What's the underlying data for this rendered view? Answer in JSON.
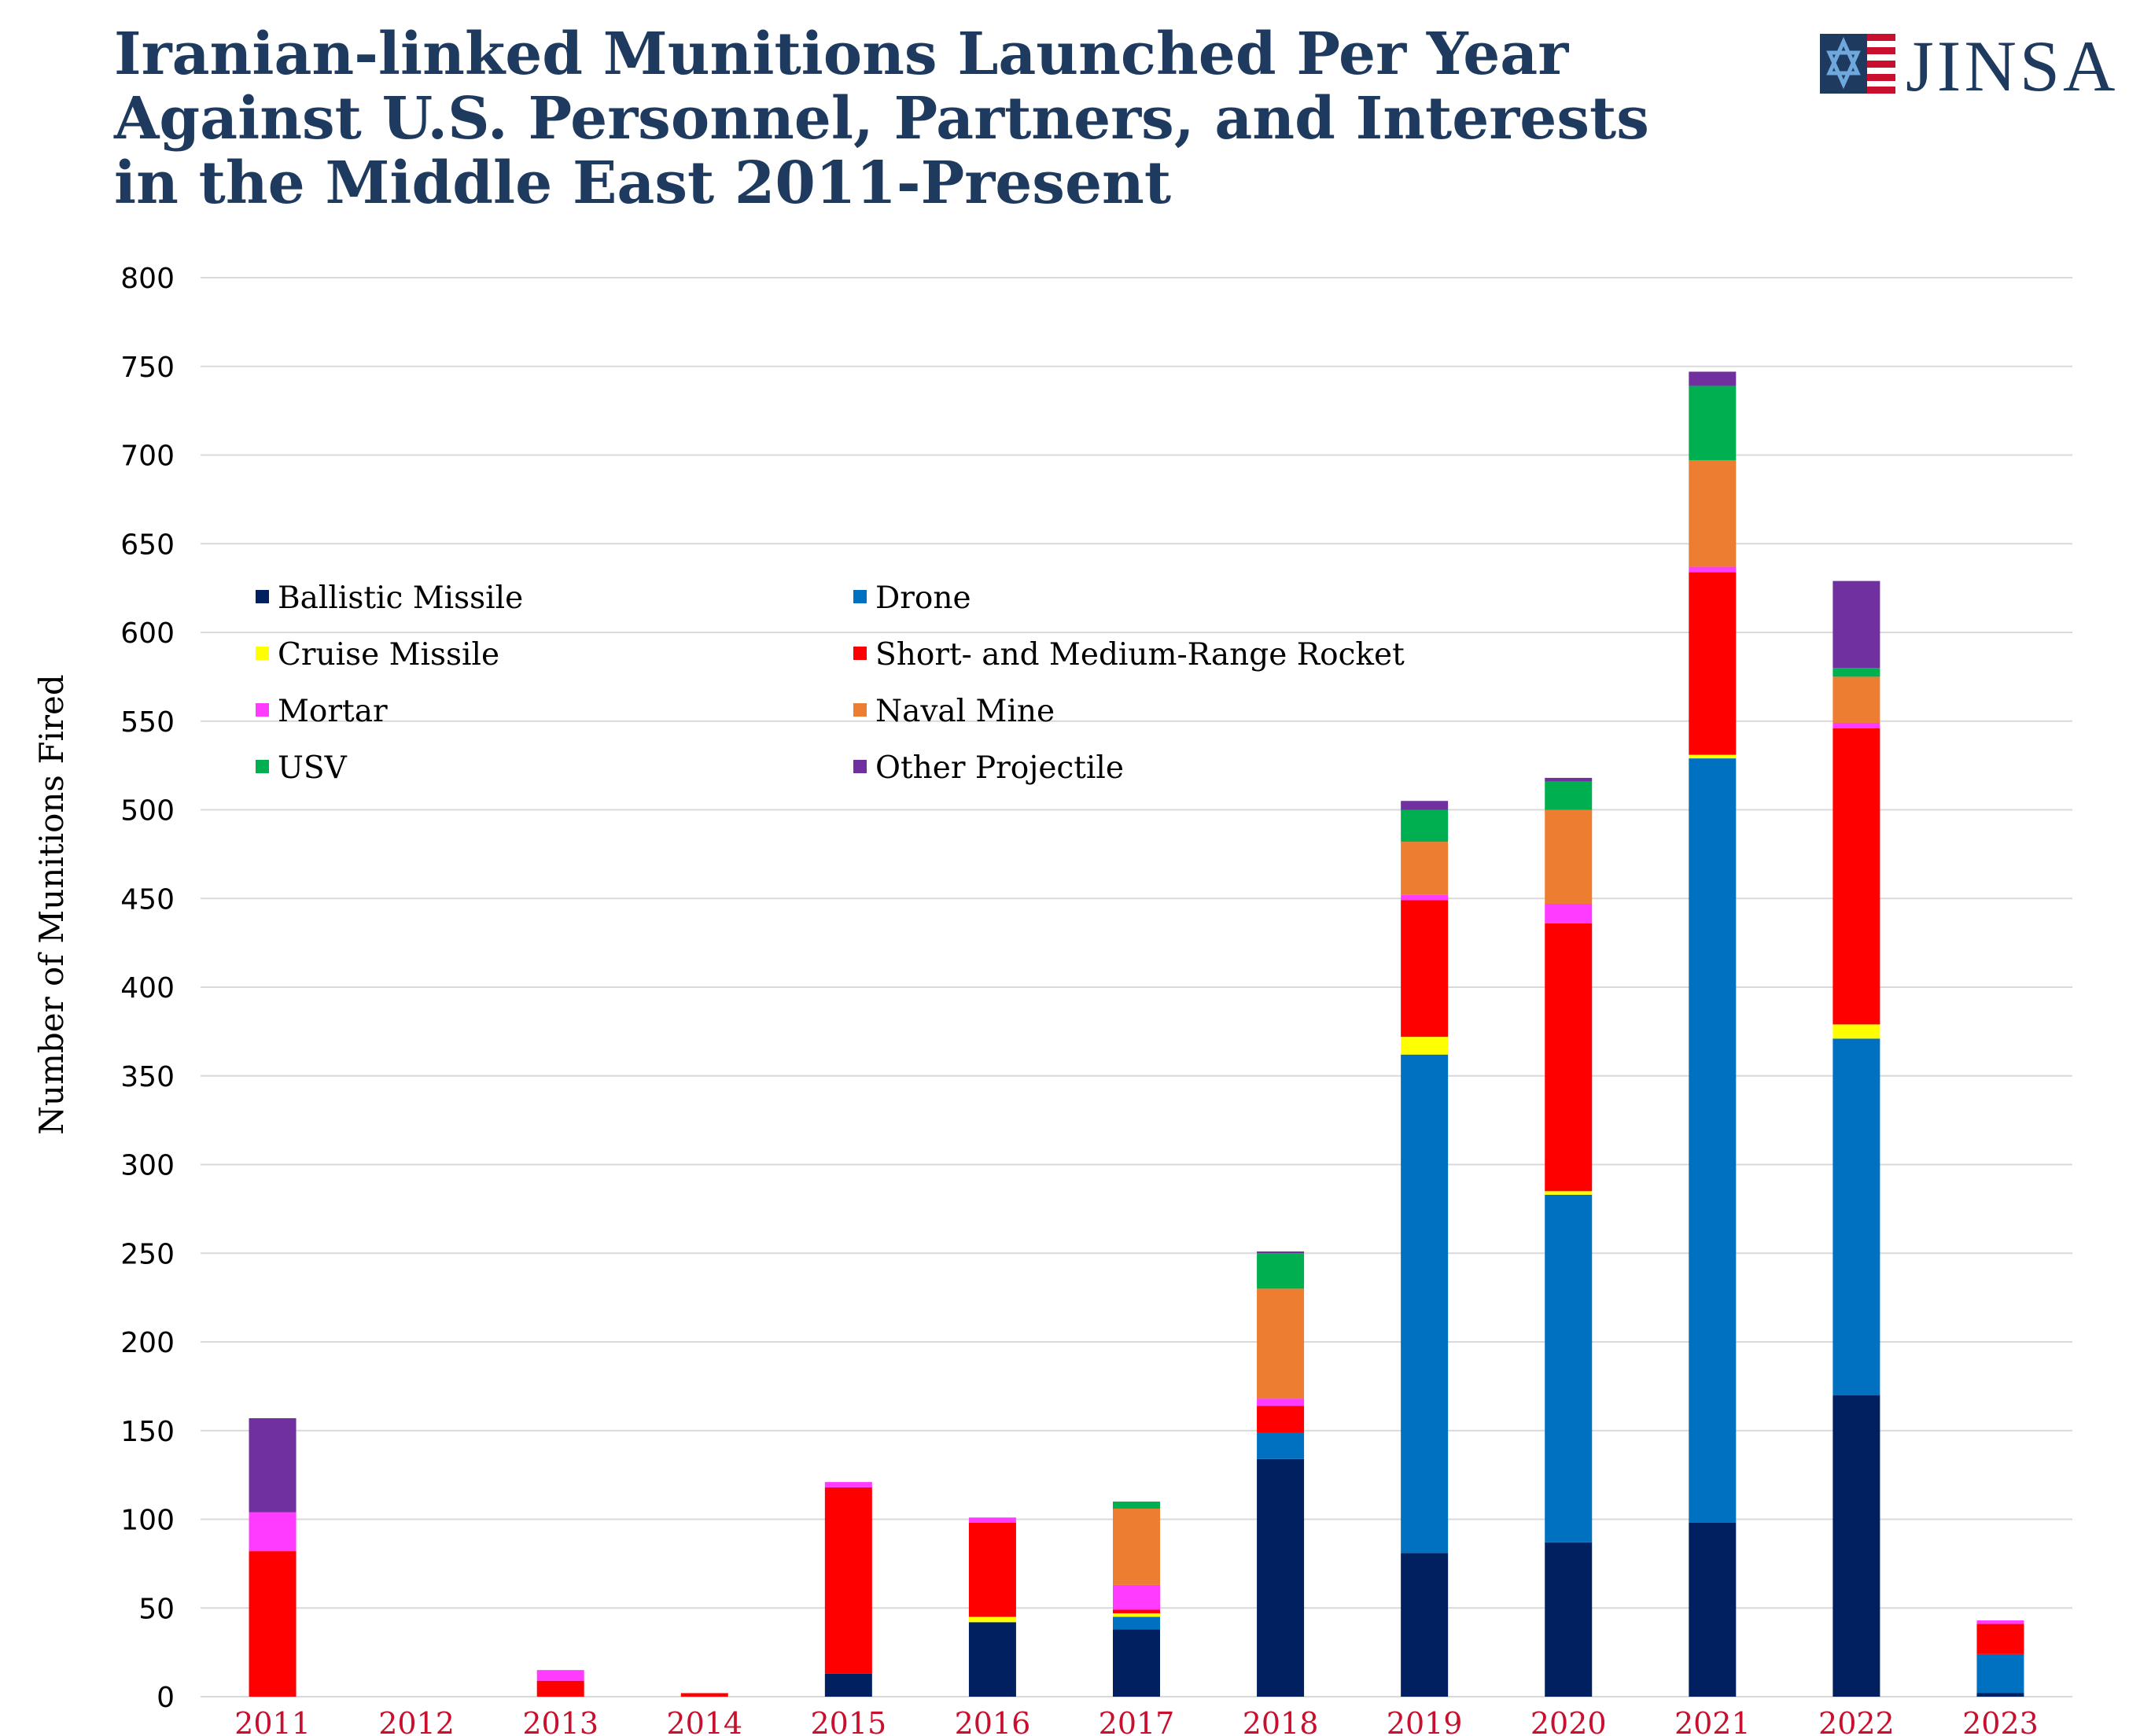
{
  "header": {
    "title_lines": [
      "Iranian-linked Munitions Launched Per Year",
      "Against U.S. Personnel, Partners, and Interests",
      "in the Middle East 2011-Present"
    ],
    "logo_text": "JINSA"
  },
  "colors": {
    "title": "#1f3a5f",
    "x_tick": "#c8102e",
    "grid": "#d9d9d9"
  },
  "chart_data": {
    "type": "bar",
    "stacked": true,
    "title": "Iranian-linked Munitions Launched Per Year Against U.S. Personnel, Partners, and Interests in the Middle East 2011-Present",
    "xlabel": "",
    "ylabel": "Number of Munitions Fired",
    "ylim": [
      0,
      800
    ],
    "yticks": [
      0,
      50,
      100,
      150,
      200,
      250,
      300,
      350,
      400,
      450,
      500,
      550,
      600,
      650,
      700,
      750,
      800
    ],
    "grid": true,
    "legend_position": "top-left, inside plot, two columns",
    "categories": [
      "2011",
      "2012",
      "2013",
      "2014",
      "2015",
      "2016",
      "2017",
      "2018",
      "2019",
      "2020",
      "2021",
      "2022",
      "2023"
    ],
    "series": [
      {
        "name": "Ballistic Missile",
        "color": "#002060",
        "values": [
          0,
          0,
          0,
          0,
          13,
          42,
          38,
          134,
          81,
          87,
          98,
          170,
          2
        ]
      },
      {
        "name": "Drone",
        "color": "#0070c0",
        "values": [
          0,
          0,
          0,
          0,
          0,
          0,
          7,
          15,
          281,
          196,
          431,
          201,
          22
        ]
      },
      {
        "name": "Cruise Missile",
        "color": "#ffff00",
        "values": [
          0,
          0,
          0,
          0,
          0,
          3,
          2,
          0,
          10,
          2,
          2,
          8,
          0
        ]
      },
      {
        "name": "Short- and Medium-Range Rocket",
        "color": "#ff0000",
        "values": [
          82,
          0,
          9,
          2,
          105,
          53,
          2,
          15,
          77,
          151,
          103,
          167,
          17
        ]
      },
      {
        "name": "Mortar",
        "color": "#ff3bff",
        "values": [
          22,
          0,
          6,
          0,
          3,
          3,
          14,
          4,
          3,
          11,
          3,
          3,
          2
        ]
      },
      {
        "name": "Naval Mine",
        "color": "#ed7d31",
        "values": [
          0,
          0,
          0,
          0,
          0,
          0,
          43,
          62,
          30,
          53,
          60,
          26,
          0
        ]
      },
      {
        "name": "USV",
        "color": "#00b050",
        "values": [
          0,
          0,
          0,
          0,
          0,
          0,
          4,
          20,
          18,
          16,
          42,
          5,
          0
        ]
      },
      {
        "name": "Other Projectile",
        "color": "#7030a0",
        "values": [
          53,
          0,
          0,
          0,
          0,
          0,
          0,
          1,
          5,
          2,
          8,
          49,
          0
        ]
      }
    ]
  }
}
